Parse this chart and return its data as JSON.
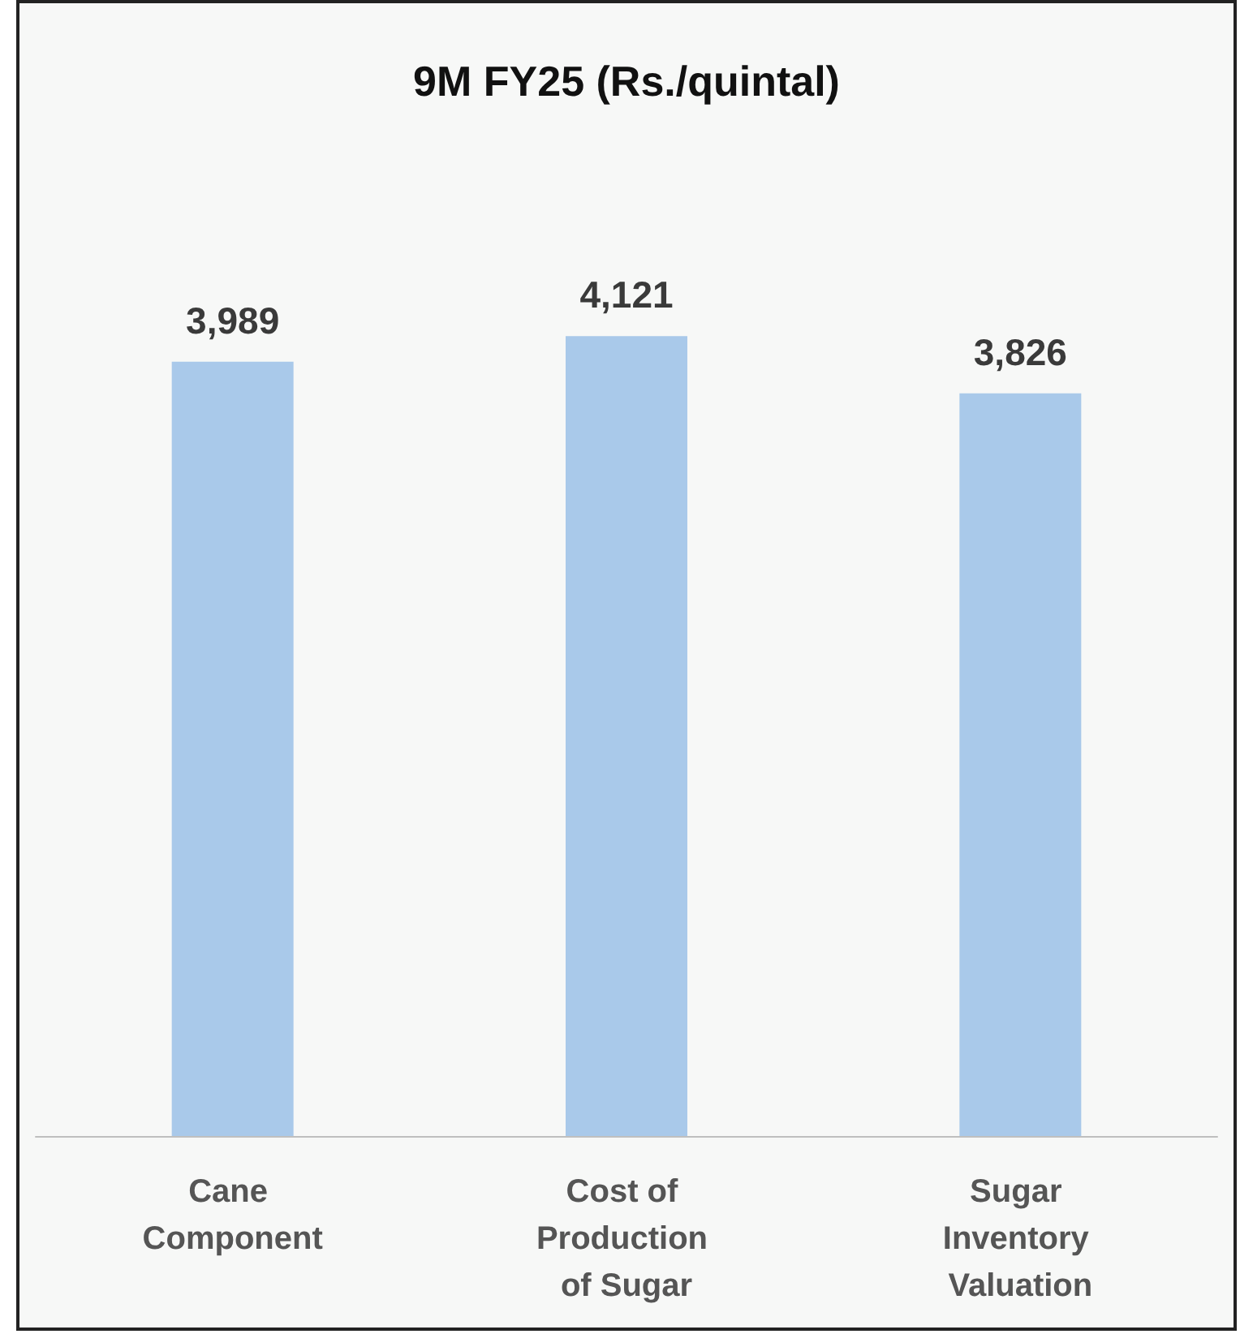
{
  "chart_data": {
    "type": "bar",
    "title": "9M FY25 (Rs./quintal)",
    "categories": [
      "Cane Component",
      "Cost of Production of Sugar",
      "Sugar Inventory Valuation"
    ],
    "values": [
      3989,
      4121,
      3826
    ],
    "value_labels": [
      "3,989",
      "4,121",
      "3,826"
    ],
    "color": "#a9c9ea"
  }
}
